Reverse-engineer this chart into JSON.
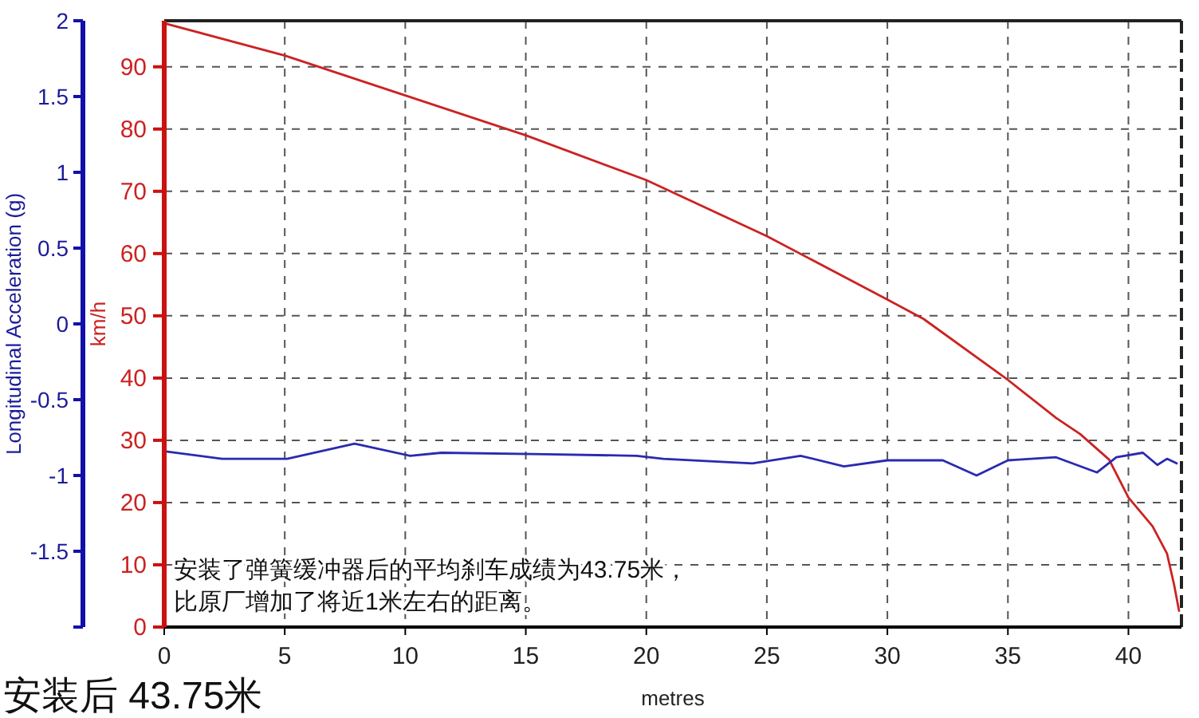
{
  "chart_data": {
    "type": "line",
    "xlabel": "metres",
    "ylabel": "Longitudinal Acceleration (g)",
    "y2label": "km/h",
    "xlim": [
      0,
      42.2
    ],
    "xticks": [
      0,
      5,
      10,
      15,
      20,
      25,
      30,
      35,
      40
    ],
    "ylim": [
      -2,
      2
    ],
    "yticks": [
      {
        "value": -2,
        "label": null
      },
      -1.5,
      -1,
      -0.5,
      0,
      0.5,
      1,
      1.5,
      2
    ],
    "y2lim": [
      0,
      97.4
    ],
    "y2ticks": [
      0,
      10,
      20,
      30,
      40,
      50,
      60,
      70,
      80,
      90
    ],
    "grid": true,
    "line_style": "solid",
    "series": [
      {
        "color": "#cc2222",
        "axis": "y2",
        "x": [
          0,
          5,
          10,
          15,
          20,
          25,
          30,
          31.5,
          35,
          37,
          38,
          39.2,
          40,
          41,
          41.6,
          41.9,
          42.1
        ],
        "values": [
          97,
          91.8,
          85.4,
          79,
          71.8,
          62.8,
          52.6,
          49.5,
          39.7,
          33.6,
          31,
          26.9,
          20.8,
          16.2,
          11.8,
          6.7,
          2.6
        ]
      },
      {
        "color": "#2a2ab0",
        "axis": "y",
        "x": [
          0,
          2.4,
          5.1,
          7.9,
          10.2,
          11.5,
          15.8,
          19.6,
          20.7,
          24.4,
          26.4,
          28.2,
          30,
          32.3,
          33.7,
          35,
          37,
          38.7,
          39.5,
          40.6,
          41.2,
          41.6,
          42
        ],
        "values": [
          -0.84,
          -0.89,
          -0.89,
          -0.79,
          -0.87,
          -0.85,
          -0.86,
          -0.87,
          -0.89,
          -0.92,
          -0.87,
          -0.94,
          -0.9,
          -0.9,
          -1.0,
          -0.9,
          -0.88,
          -0.98,
          -0.88,
          -0.85,
          -0.93,
          -0.89,
          -0.92
        ]
      }
    ],
    "annotations": [
      "安装了弹簧缓冲器后的平均刹车成绩为43.75米，",
      "比原厂增加了将近1米左右的距离。",
      "安装后 43.75米"
    ]
  }
}
